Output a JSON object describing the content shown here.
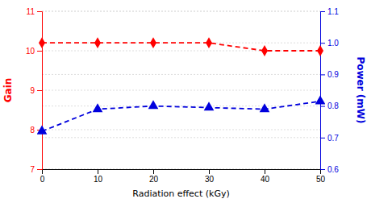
{
  "chart_data": {
    "type": "line",
    "x": [
      0,
      10,
      20,
      30,
      40,
      50
    ],
    "xlabel": "Radiation effect (kGy)",
    "ylabel": "Gain",
    "y2label": "Power (mW)",
    "series": [
      {
        "values": [
          10.2,
          10.2,
          10.2,
          10.2,
          10.0,
          10.0
        ],
        "color": "#ff0000",
        "marker": "diamond",
        "line_style": "dashed"
      },
      {
        "values": [
          0.72,
          0.79,
          0.8,
          0.795,
          0.79,
          0.815
        ],
        "color": "#0000dd",
        "marker": "triangle",
        "line_style": "dashed",
        "axis": "y2"
      }
    ],
    "xlim": [
      0,
      50
    ],
    "xticks": [
      0,
      10,
      20,
      30,
      40,
      50
    ],
    "ylim": [
      7,
      11
    ],
    "yticks": [
      7,
      8,
      9,
      10,
      11
    ],
    "y2lim": [
      0.6,
      1.1
    ],
    "y2ticks": [
      0.6,
      0.7,
      0.8,
      0.9,
      {
        "value": 1.0,
        "label": "1.0"
      },
      1.1
    ],
    "grid": true
  }
}
